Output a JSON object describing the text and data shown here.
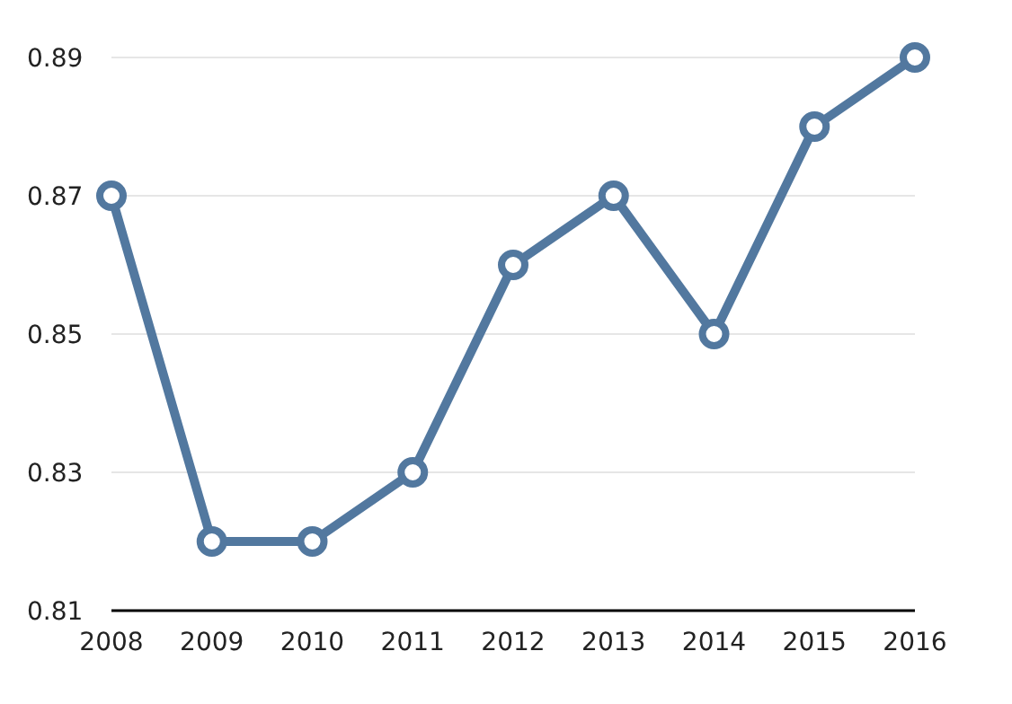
{
  "chart_data": {
    "type": "line",
    "categories": [
      "2008",
      "2009",
      "2010",
      "2011",
      "2012",
      "2013",
      "2014",
      "2015",
      "2016"
    ],
    "series": [
      {
        "color": "#52789f",
        "values": [
          0.87,
          0.82,
          0.82,
          0.83,
          0.86,
          0.87,
          0.85,
          0.88,
          0.89
        ]
      }
    ],
    "ylim": [
      0.81,
      0.89
    ],
    "yticks": [
      0.81,
      0.83,
      0.85,
      0.87,
      0.89
    ],
    "grid": "y",
    "marker": "circle",
    "line_style": "solid"
  }
}
